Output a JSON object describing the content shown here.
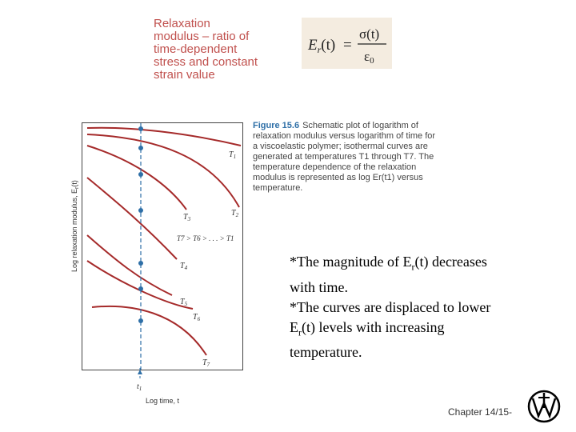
{
  "definition": {
    "lines": [
      "Relaxation",
      "modulus – ratio of",
      "time-dependent",
      "stress and constant",
      "strain value"
    ]
  },
  "formula": {
    "lhs": "E",
    "lhs_sub": "r",
    "lhs_arg": "(t)",
    "equals": "=",
    "numerator": "σ(t)",
    "denominator_symbol": "ε",
    "denominator_sub": "0"
  },
  "figure": {
    "y_axis_label": "Log relaxation modulus, E",
    "y_axis_label_sub": "r",
    "y_axis_label_arg": "(t)",
    "x_axis_label": "Log time, t",
    "time_marker_label": "t",
    "time_marker_sub": "1",
    "temperature_order": "T7 > T6 > . . . > T1",
    "curve_labels": [
      {
        "name": "T",
        "sub": "1"
      },
      {
        "name": "T",
        "sub": "2"
      },
      {
        "name": "T",
        "sub": "3"
      },
      {
        "name": "T",
        "sub": "4"
      },
      {
        "name": "T",
        "sub": "5"
      },
      {
        "name": "T",
        "sub": "6"
      },
      {
        "name": "T",
        "sub": "7"
      }
    ],
    "curve_color": "#a52a2a",
    "marker_color": "#2e6fa7"
  },
  "caption": {
    "label": "Figure 15.6",
    "text": "Schematic plot of logarithm of relaxation modulus versus logarithm of time for a viscoelastic polymer; isothermal curves are generated at temperatures T1 through T7. The temperature dependence of the relaxation modulus is represented as log Er(t1) versus temperature."
  },
  "notes": {
    "line1_pre": "*The magnitude of E",
    "line1_sub": "r",
    "line1_post": "(t) decreases",
    "line2": "with time.",
    "line3": "*The curves are displaced to lower",
    "line4_pre": "E",
    "line4_sub": "r",
    "line4_post": "(t) levels with increasing",
    "line5": "temperature."
  },
  "footer": {
    "chapter": "Chapter 14/15-"
  },
  "logo": {
    "name": "publisher-logo-icon"
  }
}
